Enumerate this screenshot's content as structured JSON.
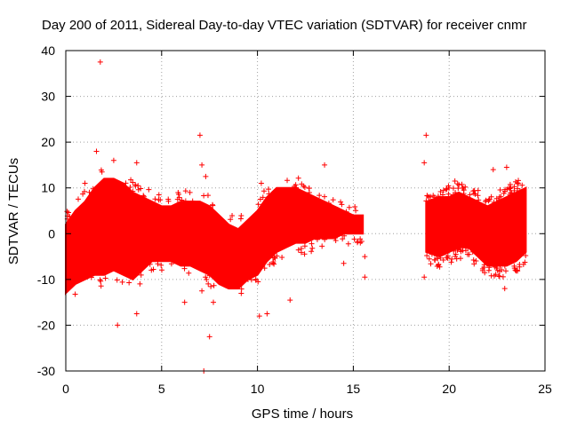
{
  "chart_data": {
    "type": "scatter",
    "title": "Day 200 of 2011, Sidereal Day-to-day VTEC variation (SDTVAR) for receiver cnmr",
    "xlabel": "GPS time / hours",
    "ylabel": "SDTVAR / TECUs",
    "xlim": [
      0,
      25
    ],
    "ylim": [
      -30,
      40
    ],
    "xticks": [
      0,
      5,
      10,
      15,
      20,
      25
    ],
    "yticks": [
      -30,
      -20,
      -10,
      0,
      10,
      20,
      30,
      40
    ],
    "grid": true,
    "marker": "+",
    "color": "#ff0000",
    "series": [
      {
        "name": "SDTVAR",
        "envelope": {
          "description": "dense band of points between lower and upper bounds (TECU) at given hours",
          "segments": [
            {
              "x": [
                0.0,
                0.5,
                1.0,
                1.5,
                2.0,
                2.5,
                3.0,
                3.5,
                4.0,
                4.5,
                5.0,
                5.5,
                6.0,
                6.5,
                7.0,
                7.5,
                8.0,
                8.5,
                9.0,
                9.5,
                10.0,
                10.5,
                11.0,
                11.5,
                12.0,
                12.5,
                13.0,
                13.5,
                14.0,
                14.5,
                15.0,
                15.5
              ],
              "lower": [
                -13,
                -11,
                -10,
                -9,
                -9,
                -8,
                -9,
                -10,
                -8,
                -6,
                -6,
                -6,
                -7,
                -7,
                -8,
                -9,
                -11,
                -12,
                -12,
                -10,
                -9,
                -6,
                -4,
                -3,
                -2,
                -2,
                -1,
                -1,
                -1,
                0,
                0,
                0
              ],
              "upper": [
                2,
                5,
                7,
                10,
                12,
                12,
                11,
                9,
                8,
                7,
                6,
                6,
                7,
                7,
                7,
                6,
                4,
                2,
                1,
                3,
                5,
                8,
                10,
                10,
                10,
                9,
                8,
                7,
                6,
                5,
                4,
                4
              ]
            },
            {
              "x": [
                18.8,
                19.5,
                20.0,
                20.5,
                21.0,
                21.5,
                22.0,
                22.5,
                23.0,
                23.5,
                24.0
              ],
              "lower": [
                -4,
                -5,
                -4,
                -3,
                -3,
                -5,
                -7,
                -7,
                -7,
                -6,
                -4
              ],
              "upper": [
                7,
                8,
                8,
                9,
                8,
                7,
                6,
                7,
                8,
                9,
                10
              ]
            }
          ]
        },
        "outliers": [
          {
            "x": 1.8,
            "y": 37.5
          },
          {
            "x": 1.6,
            "y": 18
          },
          {
            "x": 2.5,
            "y": 16
          },
          {
            "x": 3.7,
            "y": 15.5
          },
          {
            "x": 2.7,
            "y": -20
          },
          {
            "x": 3.7,
            "y": -17.5
          },
          {
            "x": 7.0,
            "y": 21.5
          },
          {
            "x": 7.1,
            "y": 15
          },
          {
            "x": 7.3,
            "y": 12.5
          },
          {
            "x": 7.2,
            "y": -30
          },
          {
            "x": 7.5,
            "y": -22.5
          },
          {
            "x": 7.7,
            "y": -15
          },
          {
            "x": 6.2,
            "y": -15
          },
          {
            "x": 7.1,
            "y": -12.5
          },
          {
            "x": 10.1,
            "y": -18
          },
          {
            "x": 10.5,
            "y": -17.5
          },
          {
            "x": 11.7,
            "y": -14.5
          },
          {
            "x": 13.5,
            "y": 15
          },
          {
            "x": 15.6,
            "y": -5
          },
          {
            "x": 15.6,
            "y": -9.5
          },
          {
            "x": 14.5,
            "y": -6.5
          },
          {
            "x": 18.8,
            "y": 21.5
          },
          {
            "x": 18.7,
            "y": 15.5
          },
          {
            "x": 18.7,
            "y": -9.5
          },
          {
            "x": 20.3,
            "y": 11.5
          },
          {
            "x": 22.3,
            "y": 14
          },
          {
            "x": 23.0,
            "y": 14.5
          },
          {
            "x": 22.9,
            "y": -12
          },
          {
            "x": 1.0,
            "y": 11
          },
          {
            "x": 10.2,
            "y": 11
          }
        ]
      }
    ]
  }
}
